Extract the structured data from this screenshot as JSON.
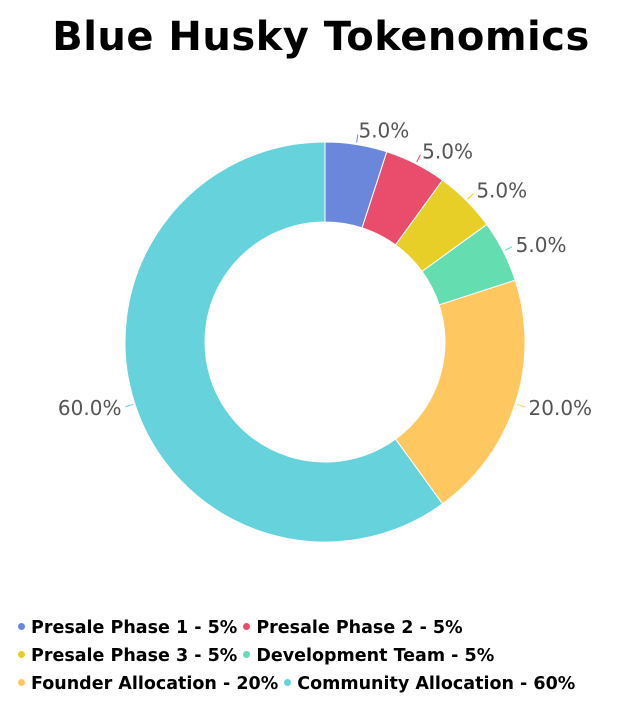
{
  "chart_data": {
    "type": "pie",
    "title": "Blue Husky Tokenomics",
    "donut": true,
    "labels": [
      "Presale Phase 1 - 5%",
      "Presale Phase 2 - 5%",
      "Presale Phase 3 - 5%",
      "Development Team - 5%",
      "Founder Allocation - 20%",
      "Community Allocation - 60%"
    ],
    "values": [
      5,
      5,
      5,
      5,
      20,
      60
    ],
    "data_labels": [
      "5.0%",
      "5.0%",
      "5.0%",
      "5.0%",
      "20.0%",
      "60.0%"
    ],
    "colors": [
      "#6a87dc",
      "#ea4c6b",
      "#e8cf27",
      "#64ddb0",
      "#ffc75f",
      "#66d2dc"
    ],
    "legend_position": "bottom",
    "legend_rows": [
      [
        0,
        1
      ],
      [
        2,
        3
      ],
      [
        4,
        5
      ]
    ]
  }
}
